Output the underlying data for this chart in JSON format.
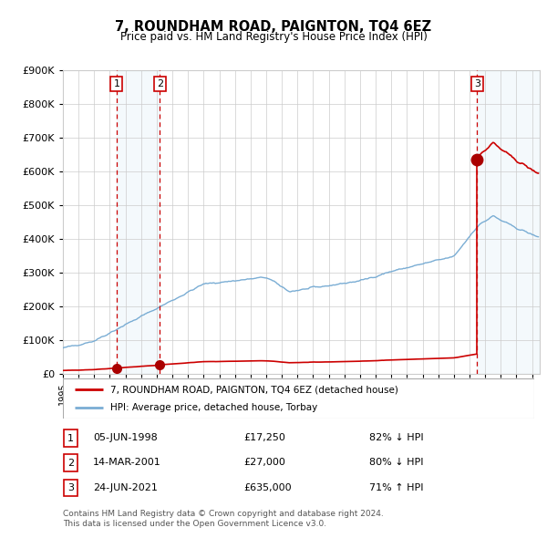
{
  "title": "7, ROUNDHAM ROAD, PAIGNTON, TQ4 6EZ",
  "subtitle": "Price paid vs. HM Land Registry's House Price Index (HPI)",
  "legend_line1": "7, ROUNDHAM ROAD, PAIGNTON, TQ4 6EZ (detached house)",
  "legend_line2": "HPI: Average price, detached house, Torbay",
  "footer1": "Contains HM Land Registry data © Crown copyright and database right 2024.",
  "footer2": "This data is licensed under the Open Government Licence v3.0.",
  "transactions": [
    {
      "num": 1,
      "date": "05-JUN-1998",
      "price": 17250,
      "year": 1998.43,
      "hpi_pct": "82% ↓ HPI"
    },
    {
      "num": 2,
      "date": "14-MAR-2001",
      "price": 27000,
      "year": 2001.2,
      "hpi_pct": "80% ↓ HPI"
    },
    {
      "num": 3,
      "date": "24-JUN-2021",
      "price": 635000,
      "year": 2021.48,
      "hpi_pct": "71% ↑ HPI"
    }
  ],
  "ylim": [
    0,
    900000
  ],
  "yticks": [
    0,
    100000,
    200000,
    300000,
    400000,
    500000,
    600000,
    700000,
    800000,
    900000
  ],
  "xlim_start": 1995.0,
  "xlim_end": 2025.5,
  "grid_color": "#cccccc",
  "bg_color": "#ffffff",
  "plot_bg_color": "#ffffff",
  "hpi_line_color": "#7aadd4",
  "price_line_color": "#cc0000",
  "shade_color": "#d6e8f5",
  "dot_color": "#aa0000",
  "label_border_color": "#cc0000",
  "table_num_border": "#cc0000"
}
